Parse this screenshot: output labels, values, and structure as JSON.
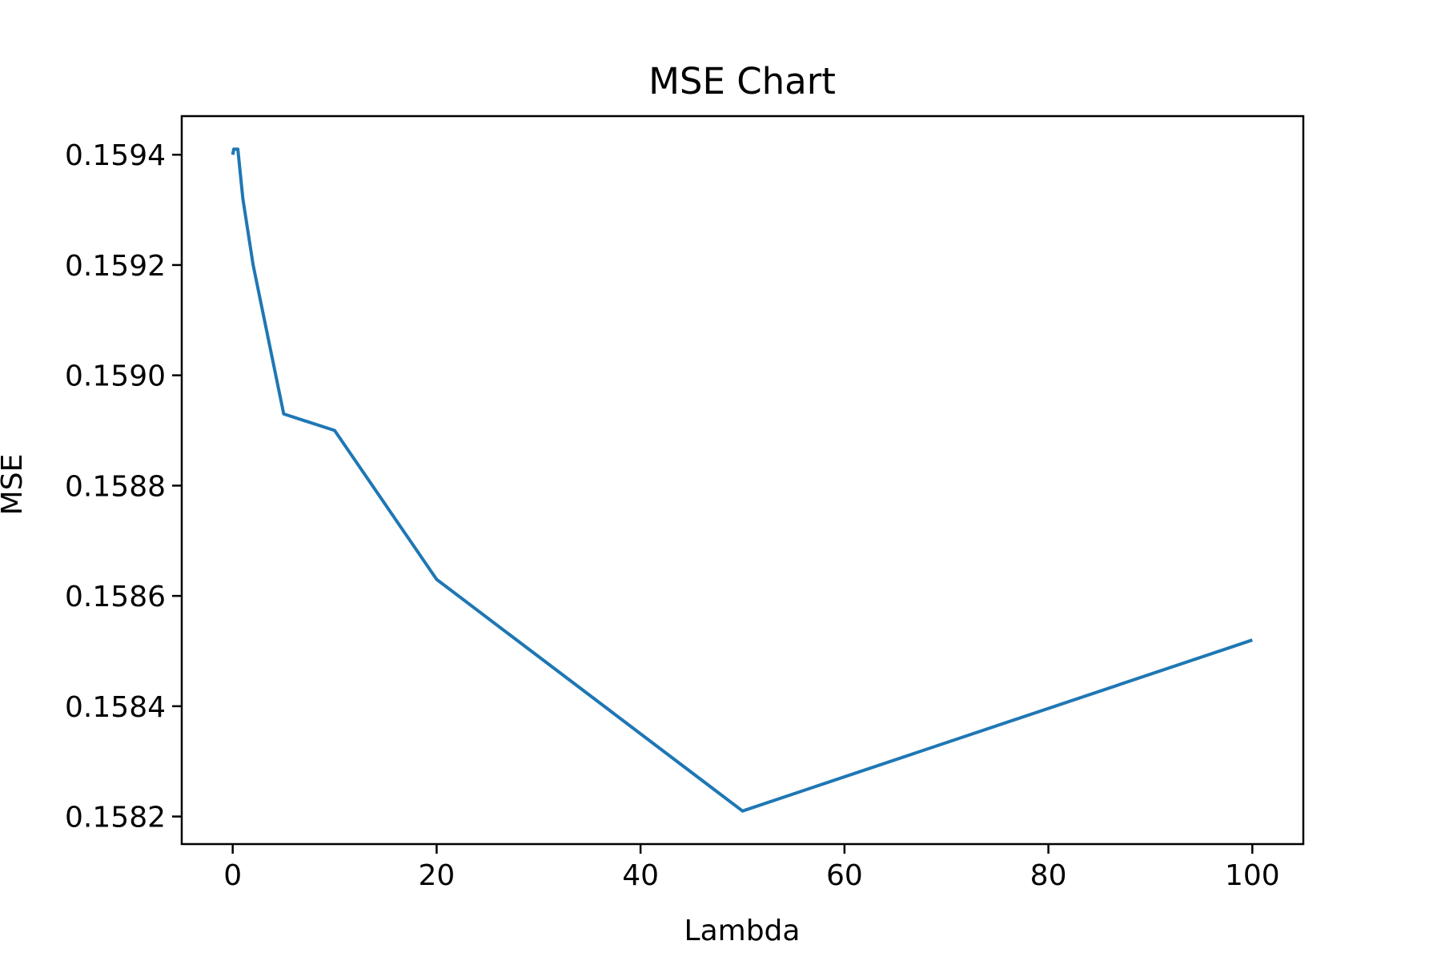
{
  "chart_data": {
    "type": "line",
    "title": "MSE Chart",
    "xlabel": "Lambda",
    "ylabel": "MSE",
    "xlim": [
      -5,
      105
    ],
    "ylim": [
      0.15815,
      0.15947
    ],
    "xticks": [
      0,
      20,
      40,
      60,
      80,
      100
    ],
    "xtick_labels": [
      "0",
      "20",
      "40",
      "60",
      "80",
      "100"
    ],
    "yticks": [
      0.1582,
      0.1584,
      0.1586,
      0.1588,
      0.159,
      0.1592,
      0.1594
    ],
    "ytick_labels": [
      "0.1582",
      "0.1584",
      "0.1586",
      "0.1588",
      "0.1590",
      "0.1592",
      "0.1594"
    ],
    "grid": false,
    "series": [
      {
        "color": "#1f77b4",
        "x": [
          0,
          0.1,
          0.5,
          1,
          2,
          5,
          10,
          20,
          50,
          100
        ],
        "y": [
          0.1594,
          0.15941,
          0.15941,
          0.15932,
          0.1592,
          0.15893,
          0.1589,
          0.15863,
          0.15821,
          0.15852
        ]
      }
    ]
  }
}
